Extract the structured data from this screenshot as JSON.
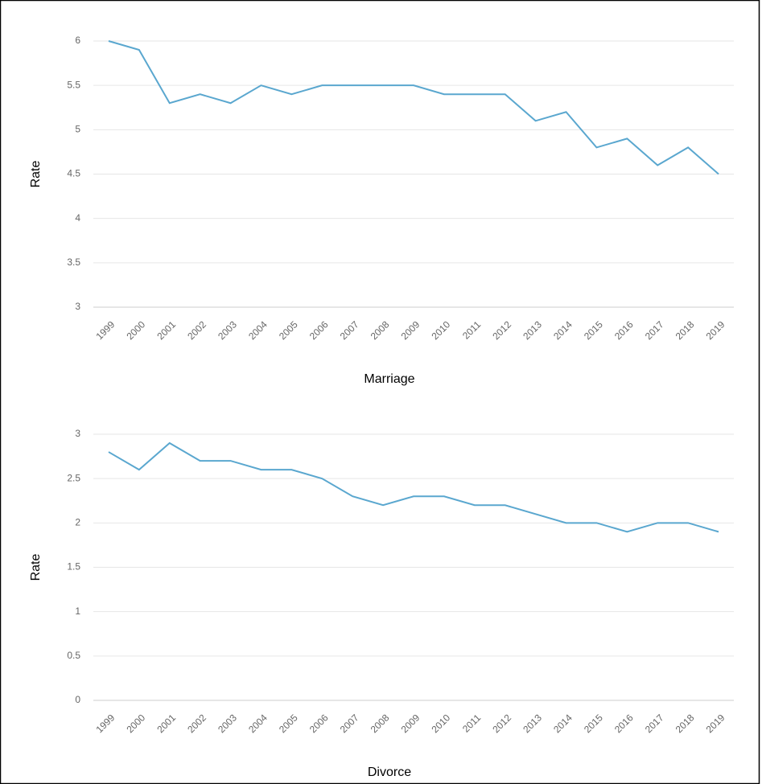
{
  "chart_data": [
    {
      "type": "line",
      "x_label": "Marriage",
      "y_label": "Rate",
      "categories": [
        "1999",
        "2000",
        "2001",
        "2002",
        "2003",
        "2004",
        "2005",
        "2006",
        "2007",
        "2008",
        "2009",
        "2010",
        "2011",
        "2012",
        "2013",
        "2014",
        "2015",
        "2016",
        "2017",
        "2018",
        "2019"
      ],
      "series": [
        {
          "color": "#5aa7cf",
          "values": [
            6,
            5.9,
            5.3,
            5.4,
            5.3,
            5.5,
            5.4,
            5.5,
            5.5,
            5.5,
            5.5,
            5.4,
            5.4,
            5.4,
            5.1,
            5.2,
            4.8,
            4.9,
            4.6,
            4.8,
            4.5
          ]
        }
      ],
      "ylim": [
        3,
        6
      ],
      "yticks": [
        3,
        3.5,
        4,
        4.5,
        5,
        5.5,
        6
      ],
      "grid": true
    },
    {
      "type": "line",
      "x_label": "Divorce",
      "y_label": "Rate",
      "categories": [
        "1999",
        "2000",
        "2001",
        "2002",
        "2003",
        "2004",
        "2005",
        "2006",
        "2007",
        "2008",
        "2009",
        "2010",
        "2011",
        "2012",
        "2013",
        "2014",
        "2015",
        "2016",
        "2017",
        "2018",
        "2019"
      ],
      "series": [
        {
          "color": "#5aa7cf",
          "values": [
            2.8,
            2.6,
            2.9,
            2.7,
            2.7,
            2.6,
            2.6,
            2.5,
            2.3,
            2.2,
            2.3,
            2.3,
            2.2,
            2.2,
            2.1,
            2.0,
            2.0,
            1.9,
            2.0,
            2.0,
            1.9
          ]
        }
      ],
      "ylim": [
        0,
        3
      ],
      "yticks": [
        0,
        0.5,
        1,
        1.5,
        2,
        2.5,
        3
      ],
      "grid": true
    }
  ]
}
